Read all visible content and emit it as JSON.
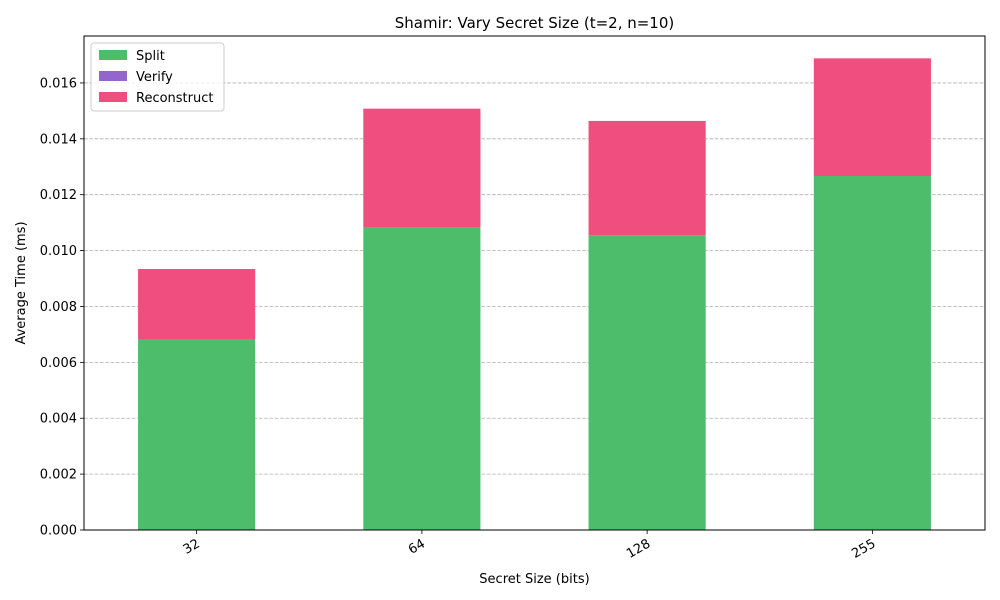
{
  "chart_data": {
    "type": "bar",
    "stacked": true,
    "title": "Shamir: Vary Secret Size (t=2, n=10)",
    "xlabel": "Secret Size (bits)",
    "ylabel": "Average Time (ms)",
    "categories": [
      "32",
      "64",
      "128",
      "255"
    ],
    "series": [
      {
        "name": "Split",
        "color": "#4dbd6c",
        "values": [
          0.00682,
          0.01083,
          0.01055,
          0.01267
        ]
      },
      {
        "name": "Verify",
        "color": "#9266cc",
        "values": [
          0,
          0,
          0,
          0
        ]
      },
      {
        "name": "Reconstruct",
        "color": "#f04e7e",
        "values": [
          0.00252,
          0.00425,
          0.00409,
          0.00421
        ]
      }
    ],
    "ylim": [
      0,
      0.01768
    ],
    "yticks": [
      "0.000",
      "0.002",
      "0.004",
      "0.006",
      "0.008",
      "0.010",
      "0.012",
      "0.014",
      "0.016"
    ],
    "grid": "y-dashed",
    "legend_position": "top-left"
  }
}
